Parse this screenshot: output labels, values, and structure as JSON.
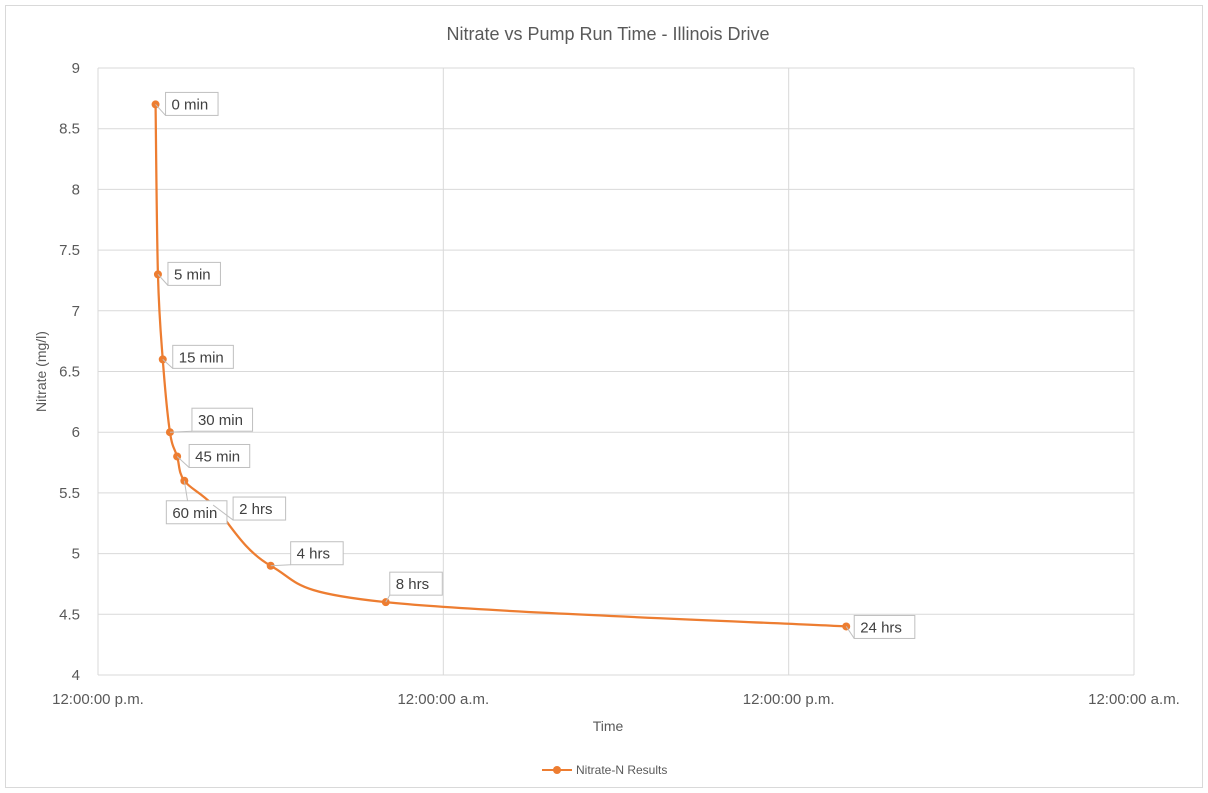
{
  "chart_data": {
    "type": "line",
    "title": "Nitrate  vs  Pump Run Time - Illinois Drive",
    "xlabel": "Time",
    "ylabel": "Nitrate (mg/l)",
    "x_tick_labels": [
      "12:00:00 p.m.",
      "12:00:00 a.m.",
      "12:00:00 p.m.",
      "12:00:00 a.m."
    ],
    "x_ticks_hours": [
      0,
      12,
      24,
      36
    ],
    "xlim_hours": [
      0,
      36
    ],
    "y_ticks": [
      "4",
      "4.5",
      "5",
      "5.5",
      "6",
      "6.5",
      "7",
      "7.5",
      "8",
      "8.5",
      "9"
    ],
    "ylim": [
      4,
      9
    ],
    "grid": true,
    "legend_position": "bottom",
    "series": [
      {
        "name": "Nitrate-N Results",
        "color": "#ED7D31",
        "x_hours": [
          2.0,
          2.083,
          2.25,
          2.5,
          2.75,
          3.0,
          4.0,
          6.0,
          10.0,
          26.0
        ],
        "values": [
          8.7,
          7.3,
          6.6,
          6.0,
          5.8,
          5.6,
          5.4,
          4.9,
          4.6,
          4.4
        ],
        "labels": [
          "0 min",
          "5 min",
          "15 min",
          "30 min",
          "45 min",
          "60 min",
          "2 hrs",
          "4 hrs",
          "8 hrs",
          "24 hrs"
        ]
      }
    ]
  }
}
